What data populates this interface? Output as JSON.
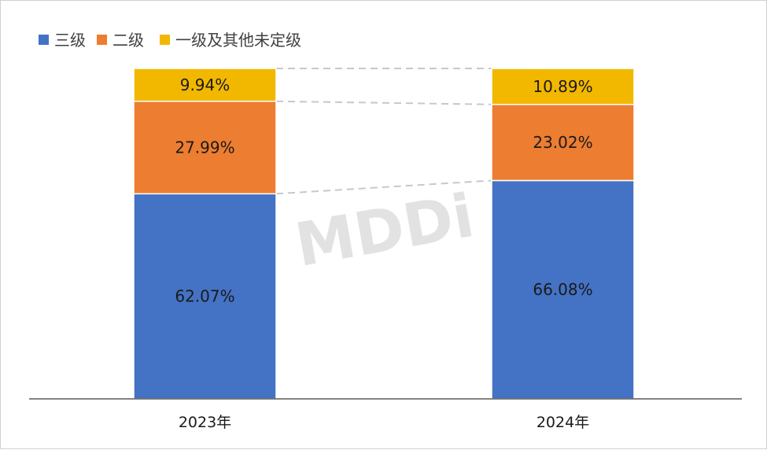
{
  "chart_data": {
    "type": "bar",
    "stacked": true,
    "normalized": true,
    "categories": [
      "2023年",
      "2024年"
    ],
    "series": [
      {
        "name": "三级",
        "color": "#4472C4",
        "values": [
          62.07,
          66.08
        ],
        "labels": [
          "62.07%",
          "66.08%"
        ]
      },
      {
        "name": "二级",
        "color": "#ED7D31",
        "values": [
          27.99,
          23.02
        ],
        "labels": [
          "27.99%",
          "23.02%"
        ]
      },
      {
        "name": "一级及其他未定级",
        "color": "#F2B800",
        "values": [
          9.94,
          10.89
        ],
        "labels": [
          "9.94%",
          "10.89%"
        ]
      }
    ],
    "ylim": [
      0,
      100
    ],
    "legend_position": "top-left",
    "series_connector_lines": true,
    "watermark": "MDDi",
    "grid": false
  }
}
